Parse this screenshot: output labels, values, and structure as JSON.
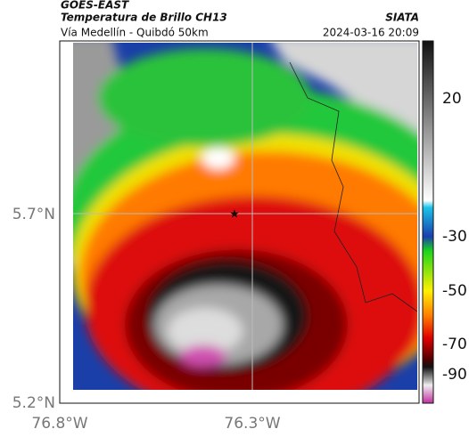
{
  "header": {
    "title": "GOES-EAST",
    "product": "Temperatura de Brillo CH13",
    "source": "SIATA",
    "region": "Vía Medellín - Quibdó 50km",
    "timestamp": "2024-03-16 20:09"
  },
  "map": {
    "lat_labels": [
      "5.7°N",
      "5.2°N"
    ],
    "lon_labels": [
      "76.8°W",
      "76.3°W"
    ]
  },
  "colorbar": {
    "tick_labels": [
      "20",
      "-30",
      "-50",
      "-70",
      "-90"
    ]
  }
}
